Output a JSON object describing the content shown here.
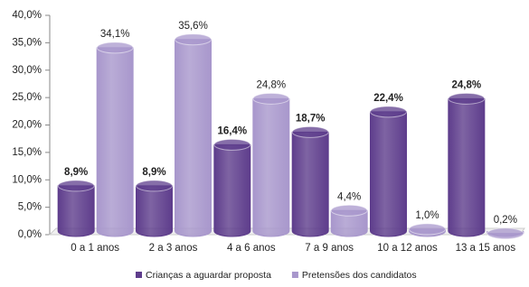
{
  "chart_data": {
    "type": "bar",
    "categories": [
      "0 a 1 anos",
      "2 a 3 anos",
      "4 a 6 anos",
      "7 a 9 anos",
      "10 a 12 anos",
      "13 a 15 anos"
    ],
    "series": [
      {
        "name": "Crianças a aguardar proposta",
        "color": "#5e3d8c",
        "values": [
          8.9,
          8.9,
          16.4,
          18.7,
          22.4,
          24.8
        ],
        "value_labels": [
          "8,9%",
          "8,9%",
          "16,4%",
          "18,7%",
          "22,4%",
          "24,8%"
        ]
      },
      {
        "name": "Pretensões dos candidatos",
        "color": "#a897cc",
        "values": [
          34.1,
          35.6,
          24.8,
          4.4,
          1.0,
          0.2
        ],
        "value_labels": [
          "34,1%",
          "35,6%",
          "24,8%",
          "4,4%",
          "1,0%",
          "0,2%"
        ]
      }
    ],
    "ylim": [
      0,
      40
    ],
    "yticks": [
      {
        "value": 0,
        "label": "0,0%"
      },
      {
        "value": 5,
        "label": "5,0%"
      },
      {
        "value": 10,
        "label": "10,0%"
      },
      {
        "value": 15,
        "label": "15,0%"
      },
      {
        "value": 20,
        "label": "20,0%"
      },
      {
        "value": 25,
        "label": "25,0%"
      },
      {
        "value": 30,
        "label": "30,0%"
      },
      {
        "value": 35,
        "label": "35,0%"
      },
      {
        "value": 40,
        "label": "40,0%"
      }
    ],
    "legend": "bottom"
  }
}
